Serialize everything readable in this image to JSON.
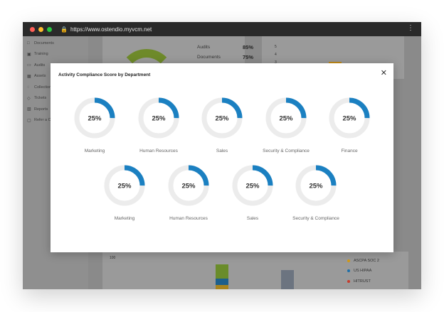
{
  "browser": {
    "url": "https://www.ostendio.myvcm.net",
    "lock_icon": "lock-icon",
    "menu_icon": "kebab-icon"
  },
  "sidebar": {
    "items": [
      {
        "label": "Documents",
        "icon": "document-icon"
      },
      {
        "label": "Training",
        "icon": "training-icon"
      },
      {
        "label": "Audits",
        "icon": "audit-icon"
      },
      {
        "label": "Assets",
        "icon": "assets-icon"
      },
      {
        "label": "Collections",
        "icon": "collections-icon"
      },
      {
        "label": "Tickets",
        "icon": "ticket-icon"
      },
      {
        "label": "Reports",
        "icon": "reports-icon"
      },
      {
        "label": "Refer a Co",
        "icon": "refer-icon"
      }
    ]
  },
  "background": {
    "stats": [
      {
        "label": "Audits",
        "value": "85%"
      },
      {
        "label": "Documents",
        "value": "75%"
      }
    ],
    "axis_top": [
      "5",
      "4",
      "3"
    ],
    "axis_bottom": "100",
    "legend": [
      {
        "label": "ASCPA SOC 2",
        "color": "#d49a16"
      },
      {
        "label": "US HIPAA",
        "color": "#1f6fa8"
      },
      {
        "label": "HITRUST",
        "color": "#c63c2c"
      }
    ]
  },
  "modal": {
    "title": "Activity Compliance Score by Department",
    "close_icon": "close-icon",
    "ring_color": "#1b80c1",
    "track_color": "#ececec",
    "row1": [
      {
        "label": "Marketing",
        "percent": 25,
        "text": "25%"
      },
      {
        "label": "Human Resources",
        "percent": 25,
        "text": "25%"
      },
      {
        "label": "Sales",
        "percent": 25,
        "text": "25%"
      },
      {
        "label": "Security & Compliance",
        "percent": 25,
        "text": "25%"
      },
      {
        "label": "Finance",
        "percent": 25,
        "text": "25%"
      }
    ],
    "row2": [
      {
        "label": "Marketing",
        "percent": 25,
        "text": "25%"
      },
      {
        "label": "Human Resources",
        "percent": 25,
        "text": "25%"
      },
      {
        "label": "Sales",
        "percent": 25,
        "text": "25%"
      },
      {
        "label": "Security & Compliance",
        "percent": 25,
        "text": "25%"
      }
    ]
  }
}
